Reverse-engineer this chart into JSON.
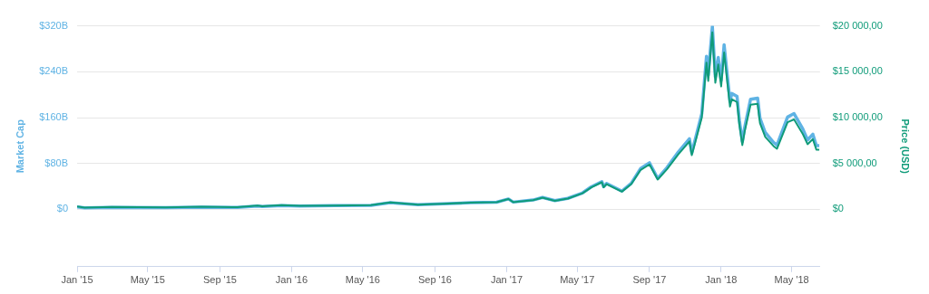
{
  "chart_data": {
    "type": "line",
    "x": [
      "2015-01-01",
      "2015-01-14",
      "2015-03-01",
      "2015-06-01",
      "2015-08-01",
      "2015-10-01",
      "2015-11-04",
      "2015-11-12",
      "2015-12-15",
      "2016-01-15",
      "2016-03-15",
      "2016-05-15",
      "2016-06-17",
      "2016-07-01",
      "2016-08-03",
      "2016-09-15",
      "2016-11-01",
      "2016-12-15",
      "2017-01-04",
      "2017-01-12",
      "2017-02-15",
      "2017-03-03",
      "2017-03-24",
      "2017-04-15",
      "2017-05-10",
      "2017-05-25",
      "2017-06-12",
      "2017-06-15",
      "2017-06-20",
      "2017-07-16",
      "2017-08-01",
      "2017-08-17",
      "2017-09-01",
      "2017-09-15",
      "2017-10-01",
      "2017-10-20",
      "2017-11-08",
      "2017-11-12",
      "2017-11-29",
      "2017-12-07",
      "2017-12-10",
      "2017-12-17",
      "2017-12-22",
      "2017-12-27",
      "2018-01-01",
      "2018-01-06",
      "2018-01-16",
      "2018-01-19",
      "2018-01-28",
      "2018-02-01",
      "2018-02-06",
      "2018-02-10",
      "2018-02-20",
      "2018-03-04",
      "2018-03-08",
      "2018-03-17",
      "2018-03-31",
      "2018-04-06",
      "2018-04-24",
      "2018-05-05",
      "2018-05-20",
      "2018-05-28",
      "2018-06-06",
      "2018-06-12",
      "2018-06-17"
    ],
    "series": [
      {
        "color": "#5fb3e4",
        "values": [
          4.3,
          2.5,
          3.6,
          3.2,
          4.0,
          3.4,
          5.9,
          4.9,
          6.7,
          5.9,
          6.4,
          7.1,
          11.8,
          10.6,
          8.2,
          9.7,
          11.7,
          12.5,
          18.2,
          12.7,
          16.3,
          20.7,
          15.2,
          19.2,
          28.6,
          39.3,
          48.4,
          39.4,
          45.2,
          31.8,
          45.4,
          71.2,
          81.2,
          54.0,
          73.2,
          100,
          123,
          98.3,
          167,
          267,
          234,
          319,
          231,
          265,
          225,
          287,
          188,
          202,
          197,
          155,
          118,
          143,
          192,
          194,
          159,
          134,
          117,
          112,
          161,
          167,
          140,
          121,
          131,
          111,
          111
        ]
      },
      {
        "color": "#0f9b79",
        "axis": "y2",
        "values": [
          315,
          180,
          260,
          225,
          280,
          238,
          400,
          330,
          450,
          390,
          415,
          455,
          750,
          675,
          515,
          610,
          730,
          780,
          1130,
          790,
          1010,
          1280,
          935,
          1180,
          1750,
          2400,
          2950,
          2400,
          2750,
          1930,
          2750,
          4300,
          4900,
          3250,
          4400,
          6000,
          7400,
          5900,
          10000,
          16000,
          14000,
          19300,
          13800,
          15800,
          13400,
          17100,
          11200,
          12000,
          11700,
          9200,
          7000,
          8500,
          11400,
          11500,
          9400,
          7900,
          6900,
          6600,
          9500,
          9800,
          8200,
          7100,
          7650,
          6500,
          6500
        ]
      }
    ],
    "ylabel": "Market Cap",
    "y2label": "Price (USD)",
    "xlim": [
      "2015-01-01",
      "2018-06-18"
    ],
    "xticks": [
      {
        "value": "2015-01-01",
        "label": "Jan '15"
      },
      {
        "value": "2015-05-01",
        "label": "May '15"
      },
      {
        "value": "2015-09-01",
        "label": "Sep '15"
      },
      {
        "value": "2016-01-01",
        "label": "Jan '16"
      },
      {
        "value": "2016-05-01",
        "label": "May '16"
      },
      {
        "value": "2016-09-01",
        "label": "Sep '16"
      },
      {
        "value": "2017-01-01",
        "label": "Jan '17"
      },
      {
        "value": "2017-05-01",
        "label": "May '17"
      },
      {
        "value": "2017-09-01",
        "label": "Sep '17"
      },
      {
        "value": "2018-01-01",
        "label": "Jan '18"
      },
      {
        "value": "2018-05-01",
        "label": "May '18"
      }
    ],
    "ylim": [
      -100,
      320
    ],
    "yticks": [
      {
        "value": 0,
        "label": "$0"
      },
      {
        "value": 80,
        "label": "$80B"
      },
      {
        "value": 160,
        "label": "$160B"
      },
      {
        "value": 240,
        "label": "$240B"
      },
      {
        "value": 320,
        "label": "$320B"
      }
    ],
    "y2lim": [
      -6250,
      20000
    ],
    "y2ticks": [
      {
        "value": 0,
        "label": "$0"
      },
      {
        "value": 5000,
        "label": "$5 000,00"
      },
      {
        "value": 10000,
        "label": "$10 000,00"
      },
      {
        "value": 15000,
        "label": "$15 000,00"
      },
      {
        "value": 20000,
        "label": "$20 000,00"
      }
    ],
    "grid": "y",
    "marker": "none",
    "line_style": "solid",
    "legend": false
  }
}
